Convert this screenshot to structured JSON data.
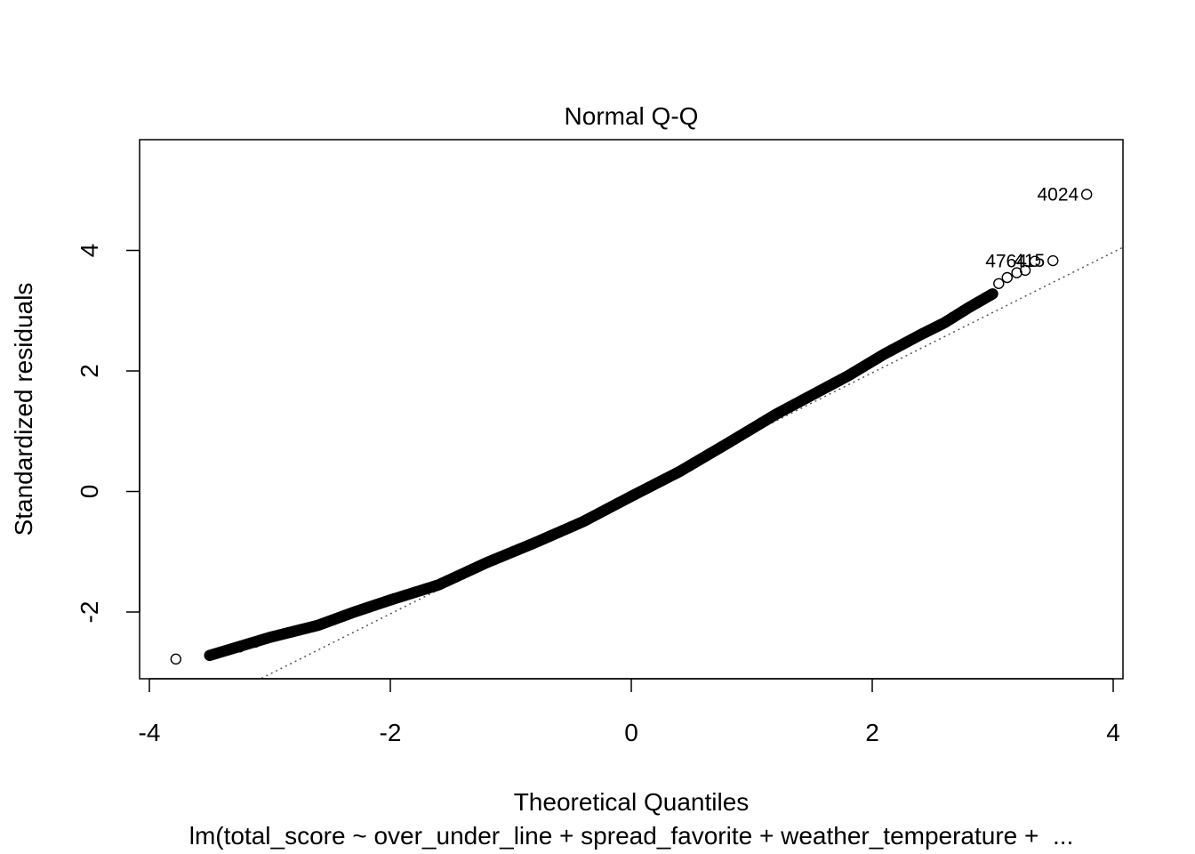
{
  "chart_data": {
    "type": "scatter",
    "title": "Normal Q-Q",
    "xlabel": "Theoretical Quantiles",
    "ylabel": "Standardized residuals",
    "subtitle": "lm(total_score ~ over_under_line + spread_favorite + weather_temperature +  ...",
    "xlim": [
      -4.1,
      4.1
    ],
    "ylim": [
      -3.1,
      5.7
    ],
    "x_ticks": [
      "-4",
      "-2",
      "0",
      "2",
      "4"
    ],
    "y_ticks": [
      "-2",
      "0",
      "2",
      "4"
    ],
    "grid": false,
    "reference_line": {
      "style": "dotted",
      "intercept": -0.03,
      "slope": 1.0
    },
    "curve": [
      [
        -3.5,
        -2.72
      ],
      [
        -3.0,
        -2.42
      ],
      [
        -2.6,
        -2.22
      ],
      [
        -2.3,
        -2.0
      ],
      [
        -2.0,
        -1.8
      ],
      [
        -1.6,
        -1.55
      ],
      [
        -1.2,
        -1.18
      ],
      [
        -0.8,
        -0.85
      ],
      [
        -0.4,
        -0.5
      ],
      [
        0.0,
        -0.08
      ],
      [
        0.4,
        0.33
      ],
      [
        0.8,
        0.8
      ],
      [
        1.2,
        1.28
      ],
      [
        1.5,
        1.6
      ],
      [
        1.8,
        1.92
      ],
      [
        2.1,
        2.28
      ],
      [
        2.4,
        2.6
      ],
      [
        2.6,
        2.8
      ],
      [
        2.8,
        3.05
      ],
      [
        3.0,
        3.28
      ]
    ],
    "extreme_points": [
      {
        "x": -3.78,
        "y": -2.78
      },
      {
        "x": -3.5,
        "y": -2.72
      },
      {
        "x": -3.35,
        "y": -2.63
      },
      {
        "x": -3.25,
        "y": -2.58
      },
      {
        "x": -3.12,
        "y": -2.5
      },
      {
        "x": 3.05,
        "y": 3.45
      },
      {
        "x": 3.12,
        "y": 3.55
      },
      {
        "x": 3.2,
        "y": 3.63
      },
      {
        "x": 3.27,
        "y": 3.67
      },
      {
        "x": 3.5,
        "y": 3.83,
        "label": "415"
      },
      {
        "x": 3.35,
        "y": 3.82,
        "label": "4764"
      },
      {
        "x": 3.78,
        "y": 4.93,
        "label": "4024"
      }
    ]
  }
}
